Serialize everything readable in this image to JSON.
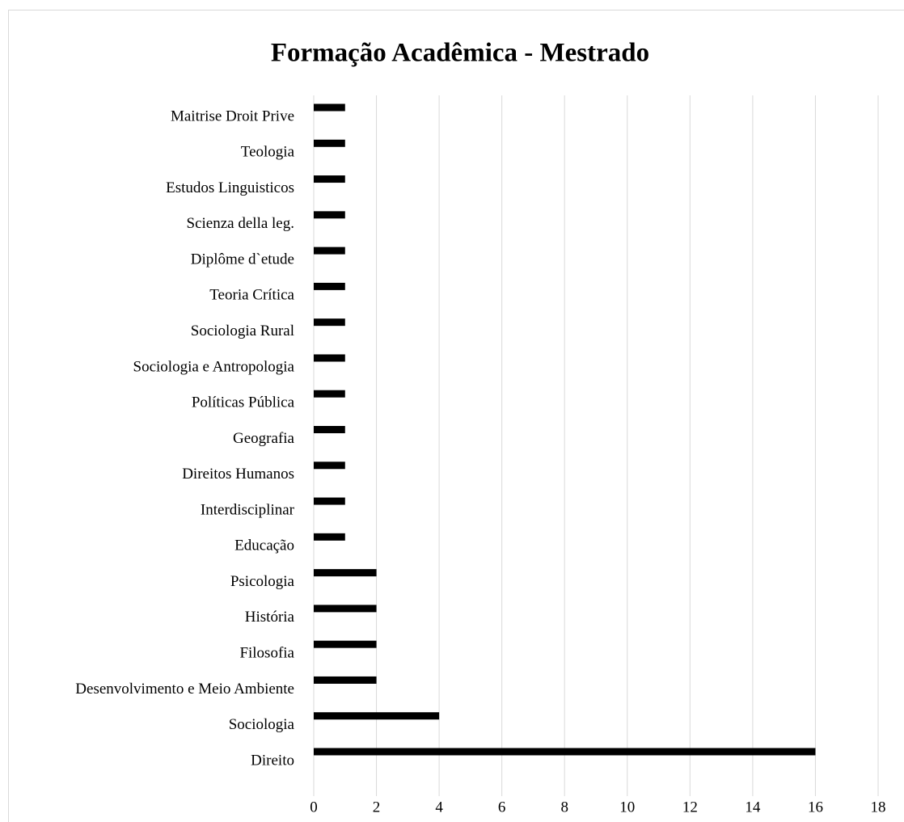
{
  "chart_data": {
    "type": "barh",
    "title": "Formação Acadêmica - Mestrado",
    "categories": [
      "Maitrise Droit Prive",
      "Teologia",
      "Estudos Linguisticos",
      "Scienza della leg.",
      "Diplôme d`etude",
      "Teoria Crítica",
      "Sociologia Rural",
      "Sociologia e Antropologia",
      "Políticas Pública",
      "Geografia",
      "Direitos Humanos",
      "Interdisciplinar",
      "Educação",
      "Psicologia",
      "História",
      "Filosofia",
      "Desenvolvimento e Meio Ambiente",
      "Sociologia",
      "Direito"
    ],
    "values": [
      1,
      1,
      1,
      1,
      1,
      1,
      1,
      1,
      1,
      1,
      1,
      1,
      1,
      2,
      2,
      2,
      2,
      4,
      16
    ],
    "color": "#000000",
    "xlim": [
      0,
      18
    ],
    "xticks": [
      0,
      2,
      4,
      6,
      8,
      10,
      12,
      14,
      16,
      18
    ],
    "grid": true
  }
}
